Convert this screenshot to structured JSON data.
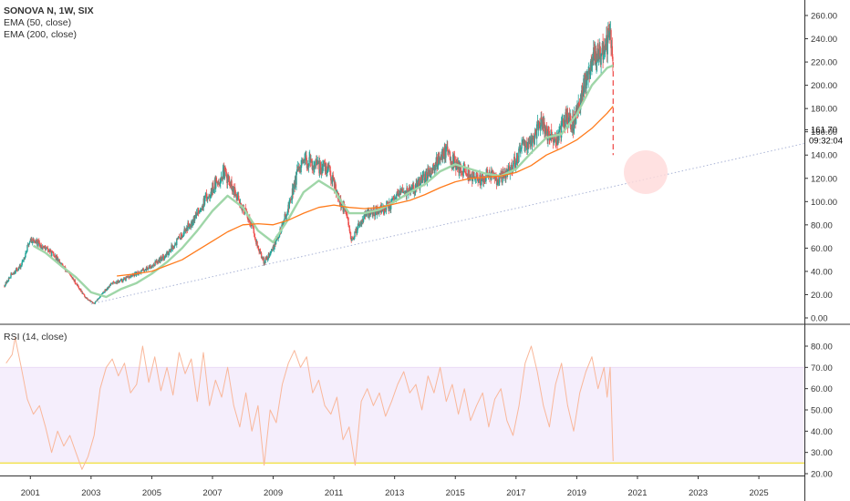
{
  "chart_data": [
    {
      "type": "candlestick",
      "legend": {
        "symbol": "SONOVA N, 1W, SIX",
        "ema50": "EMA (50, close)",
        "ema200": "EMA (200, close)"
      },
      "price_axis": {
        "ticks": [
          "260.00",
          "240.00",
          "220.00",
          "200.00",
          "180.00",
          "160.00",
          "140.00",
          "120.00",
          "100.00",
          "80.00",
          "60.00",
          "40.00",
          "20.00",
          "0.00"
        ],
        "ylim": [
          0,
          265
        ]
      },
      "last_price": "161.70",
      "countdown": "09:32:04",
      "x_labels": [
        "2001",
        "2003",
        "2005",
        "2007",
        "2009",
        "2011",
        "2013",
        "2015",
        "2017",
        "2019",
        "2021",
        "2023",
        "2025"
      ],
      "xlim": [
        2000.0,
        2026.5
      ],
      "colors": {
        "up": "#26a69a",
        "down": "#ef5350",
        "ema50": "#9fd6a8",
        "ema200": "#ff7b1c",
        "trend": "#aab4d6",
        "circle": "#ffdada"
      },
      "price_anchors": [
        [
          2000.15,
          28
        ],
        [
          2000.4,
          38
        ],
        [
          2000.7,
          45
        ],
        [
          2001.0,
          68
        ],
        [
          2001.3,
          63
        ],
        [
          2001.6,
          58
        ],
        [
          2001.9,
          50
        ],
        [
          2002.2,
          40
        ],
        [
          2002.5,
          30
        ],
        [
          2002.8,
          18
        ],
        [
          2003.1,
          12
        ],
        [
          2003.4,
          22
        ],
        [
          2003.7,
          30
        ],
        [
          2004.0,
          32
        ],
        [
          2004.5,
          38
        ],
        [
          2005.0,
          45
        ],
        [
          2005.5,
          55
        ],
        [
          2006.0,
          72
        ],
        [
          2006.5,
          90
        ],
        [
          2007.0,
          112
        ],
        [
          2007.4,
          125
        ],
        [
          2007.7,
          108
        ],
        [
          2008.0,
          95
        ],
        [
          2008.3,
          80
        ],
        [
          2008.5,
          60
        ],
        [
          2008.7,
          48
        ],
        [
          2008.9,
          55
        ],
        [
          2009.2,
          72
        ],
        [
          2009.5,
          95
        ],
        [
          2009.8,
          125
        ],
        [
          2010.1,
          135
        ],
        [
          2010.5,
          130
        ],
        [
          2010.8,
          128
        ],
        [
          2011.0,
          118
        ],
        [
          2011.2,
          100
        ],
        [
          2011.4,
          90
        ],
        [
          2011.6,
          65
        ],
        [
          2011.8,
          80
        ],
        [
          2012.0,
          88
        ],
        [
          2012.4,
          92
        ],
        [
          2012.8,
          95
        ],
        [
          2013.2,
          108
        ],
        [
          2013.6,
          110
        ],
        [
          2014.0,
          120
        ],
        [
          2014.4,
          135
        ],
        [
          2014.7,
          145
        ],
        [
          2014.9,
          135
        ],
        [
          2015.2,
          128
        ],
        [
          2015.5,
          122
        ],
        [
          2015.8,
          118
        ],
        [
          2016.1,
          125
        ],
        [
          2016.4,
          118
        ],
        [
          2016.7,
          125
        ],
        [
          2017.0,
          135
        ],
        [
          2017.3,
          150
        ],
        [
          2017.6,
          155
        ],
        [
          2017.8,
          170
        ],
        [
          2018.0,
          160
        ],
        [
          2018.3,
          150
        ],
        [
          2018.6,
          170
        ],
        [
          2018.9,
          168
        ],
        [
          2019.2,
          195
        ],
        [
          2019.5,
          225
        ],
        [
          2019.8,
          228
        ],
        [
          2020.0,
          235
        ],
        [
          2020.1,
          250
        ],
        [
          2020.2,
          210
        ]
      ],
      "ema50_anchors": [
        [
          2001.1,
          62
        ],
        [
          2001.5,
          56
        ],
        [
          2002.0,
          45
        ],
        [
          2002.5,
          35
        ],
        [
          2003.0,
          22
        ],
        [
          2003.5,
          18
        ],
        [
          2004.0,
          25
        ],
        [
          2004.5,
          30
        ],
        [
          2005.0,
          38
        ],
        [
          2005.5,
          48
        ],
        [
          2006.0,
          60
        ],
        [
          2006.5,
          75
        ],
        [
          2007.0,
          92
        ],
        [
          2007.5,
          105
        ],
        [
          2008.0,
          95
        ],
        [
          2008.5,
          75
        ],
        [
          2009.0,
          65
        ],
        [
          2009.5,
          85
        ],
        [
          2010.0,
          108
        ],
        [
          2010.5,
          118
        ],
        [
          2011.0,
          110
        ],
        [
          2011.5,
          90
        ],
        [
          2012.0,
          90
        ],
        [
          2012.5,
          93
        ],
        [
          2013.0,
          100
        ],
        [
          2013.5,
          108
        ],
        [
          2014.0,
          115
        ],
        [
          2014.5,
          126
        ],
        [
          2015.0,
          132
        ],
        [
          2015.5,
          128
        ],
        [
          2016.0,
          124
        ],
        [
          2016.5,
          122
        ],
        [
          2017.0,
          128
        ],
        [
          2017.5,
          142
        ],
        [
          2018.0,
          155
        ],
        [
          2018.5,
          158
        ],
        [
          2019.0,
          175
        ],
        [
          2019.5,
          200
        ],
        [
          2020.0,
          215
        ],
        [
          2020.2,
          217
        ]
      ],
      "ema200_anchors": [
        [
          2003.85,
          36
        ],
        [
          2004.5,
          38
        ],
        [
          2005.0,
          40
        ],
        [
          2005.5,
          45
        ],
        [
          2006.0,
          50
        ],
        [
          2006.5,
          58
        ],
        [
          2007.0,
          66
        ],
        [
          2007.5,
          74
        ],
        [
          2008.0,
          80
        ],
        [
          2008.5,
          81
        ],
        [
          2009.0,
          80
        ],
        [
          2009.5,
          84
        ],
        [
          2010.0,
          90
        ],
        [
          2010.5,
          95
        ],
        [
          2011.0,
          97
        ],
        [
          2011.5,
          95
        ],
        [
          2012.0,
          94
        ],
        [
          2012.5,
          95
        ],
        [
          2013.0,
          98
        ],
        [
          2013.5,
          101
        ],
        [
          2014.0,
          106
        ],
        [
          2014.5,
          112
        ],
        [
          2015.0,
          117
        ],
        [
          2015.5,
          120
        ],
        [
          2016.0,
          121
        ],
        [
          2016.5,
          122
        ],
        [
          2017.0,
          125
        ],
        [
          2017.5,
          131
        ],
        [
          2018.0,
          140
        ],
        [
          2018.5,
          146
        ],
        [
          2019.0,
          153
        ],
        [
          2019.5,
          163
        ],
        [
          2020.0,
          176
        ],
        [
          2020.2,
          182
        ]
      ],
      "trendline": [
        [
          2003.0,
          12
        ],
        [
          2026.5,
          150
        ]
      ]
    },
    {
      "type": "line",
      "legend": "RSI (14, close)",
      "ticks": [
        "80.00",
        "70.00",
        "60.00",
        "50.00",
        "40.00",
        "30.00",
        "20.00"
      ],
      "ylim": [
        15,
        88
      ],
      "band": [
        25,
        70
      ],
      "colors": {
        "line": "#f9b79a",
        "band": "#f5eefc",
        "band_edge": "#eadcf5",
        "oversold": "#f3e34f"
      },
      "anchors": [
        [
          2000.2,
          72
        ],
        [
          2000.4,
          76
        ],
        [
          2000.5,
          84
        ],
        [
          2000.7,
          70
        ],
        [
          2000.9,
          55
        ],
        [
          2001.1,
          48
        ],
        [
          2001.3,
          52
        ],
        [
          2001.5,
          42
        ],
        [
          2001.7,
          30
        ],
        [
          2001.9,
          40
        ],
        [
          2002.1,
          33
        ],
        [
          2002.3,
          38
        ],
        [
          2002.5,
          30
        ],
        [
          2002.7,
          22
        ],
        [
          2002.9,
          28
        ],
        [
          2003.1,
          38
        ],
        [
          2003.3,
          60
        ],
        [
          2003.5,
          70
        ],
        [
          2003.7,
          74
        ],
        [
          2003.9,
          66
        ],
        [
          2004.1,
          72
        ],
        [
          2004.3,
          58
        ],
        [
          2004.5,
          62
        ],
        [
          2004.7,
          80
        ],
        [
          2004.9,
          63
        ],
        [
          2005.1,
          75
        ],
        [
          2005.3,
          59
        ],
        [
          2005.5,
          70
        ],
        [
          2005.7,
          57
        ],
        [
          2005.9,
          77
        ],
        [
          2006.1,
          67
        ],
        [
          2006.3,
          74
        ],
        [
          2006.5,
          54
        ],
        [
          2006.7,
          77
        ],
        [
          2006.9,
          52
        ],
        [
          2007.1,
          64
        ],
        [
          2007.3,
          56
        ],
        [
          2007.5,
          70
        ],
        [
          2007.7,
          52
        ],
        [
          2007.9,
          42
        ],
        [
          2008.1,
          58
        ],
        [
          2008.3,
          40
        ],
        [
          2008.5,
          52
        ],
        [
          2008.7,
          24
        ],
        [
          2008.9,
          50
        ],
        [
          2009.1,
          44
        ],
        [
          2009.3,
          62
        ],
        [
          2009.5,
          72
        ],
        [
          2009.7,
          78
        ],
        [
          2009.9,
          70
        ],
        [
          2010.1,
          75
        ],
        [
          2010.3,
          58
        ],
        [
          2010.5,
          64
        ],
        [
          2010.7,
          52
        ],
        [
          2010.9,
          48
        ],
        [
          2011.1,
          56
        ],
        [
          2011.3,
          36
        ],
        [
          2011.5,
          42
        ],
        [
          2011.7,
          24
        ],
        [
          2011.9,
          54
        ],
        [
          2012.1,
          60
        ],
        [
          2012.3,
          52
        ],
        [
          2012.5,
          58
        ],
        [
          2012.7,
          47
        ],
        [
          2012.9,
          54
        ],
        [
          2013.1,
          62
        ],
        [
          2013.3,
          68
        ],
        [
          2013.5,
          58
        ],
        [
          2013.7,
          62
        ],
        [
          2013.9,
          50
        ],
        [
          2014.1,
          66
        ],
        [
          2014.3,
          58
        ],
        [
          2014.5,
          70
        ],
        [
          2014.7,
          54
        ],
        [
          2014.9,
          62
        ],
        [
          2015.1,
          48
        ],
        [
          2015.3,
          60
        ],
        [
          2015.5,
          45
        ],
        [
          2015.7,
          52
        ],
        [
          2015.9,
          58
        ],
        [
          2016.1,
          42
        ],
        [
          2016.3,
          55
        ],
        [
          2016.5,
          60
        ],
        [
          2016.7,
          45
        ],
        [
          2016.9,
          38
        ],
        [
          2017.1,
          52
        ],
        [
          2017.3,
          72
        ],
        [
          2017.5,
          80
        ],
        [
          2017.7,
          68
        ],
        [
          2017.9,
          52
        ],
        [
          2018.1,
          42
        ],
        [
          2018.3,
          62
        ],
        [
          2018.5,
          72
        ],
        [
          2018.7,
          52
        ],
        [
          2018.9,
          40
        ],
        [
          2019.1,
          58
        ],
        [
          2019.3,
          68
        ],
        [
          2019.5,
          75
        ],
        [
          2019.7,
          60
        ],
        [
          2019.9,
          70
        ],
        [
          2020.0,
          56
        ],
        [
          2020.1,
          70
        ],
        [
          2020.15,
          48
        ],
        [
          2020.2,
          26
        ]
      ]
    }
  ]
}
